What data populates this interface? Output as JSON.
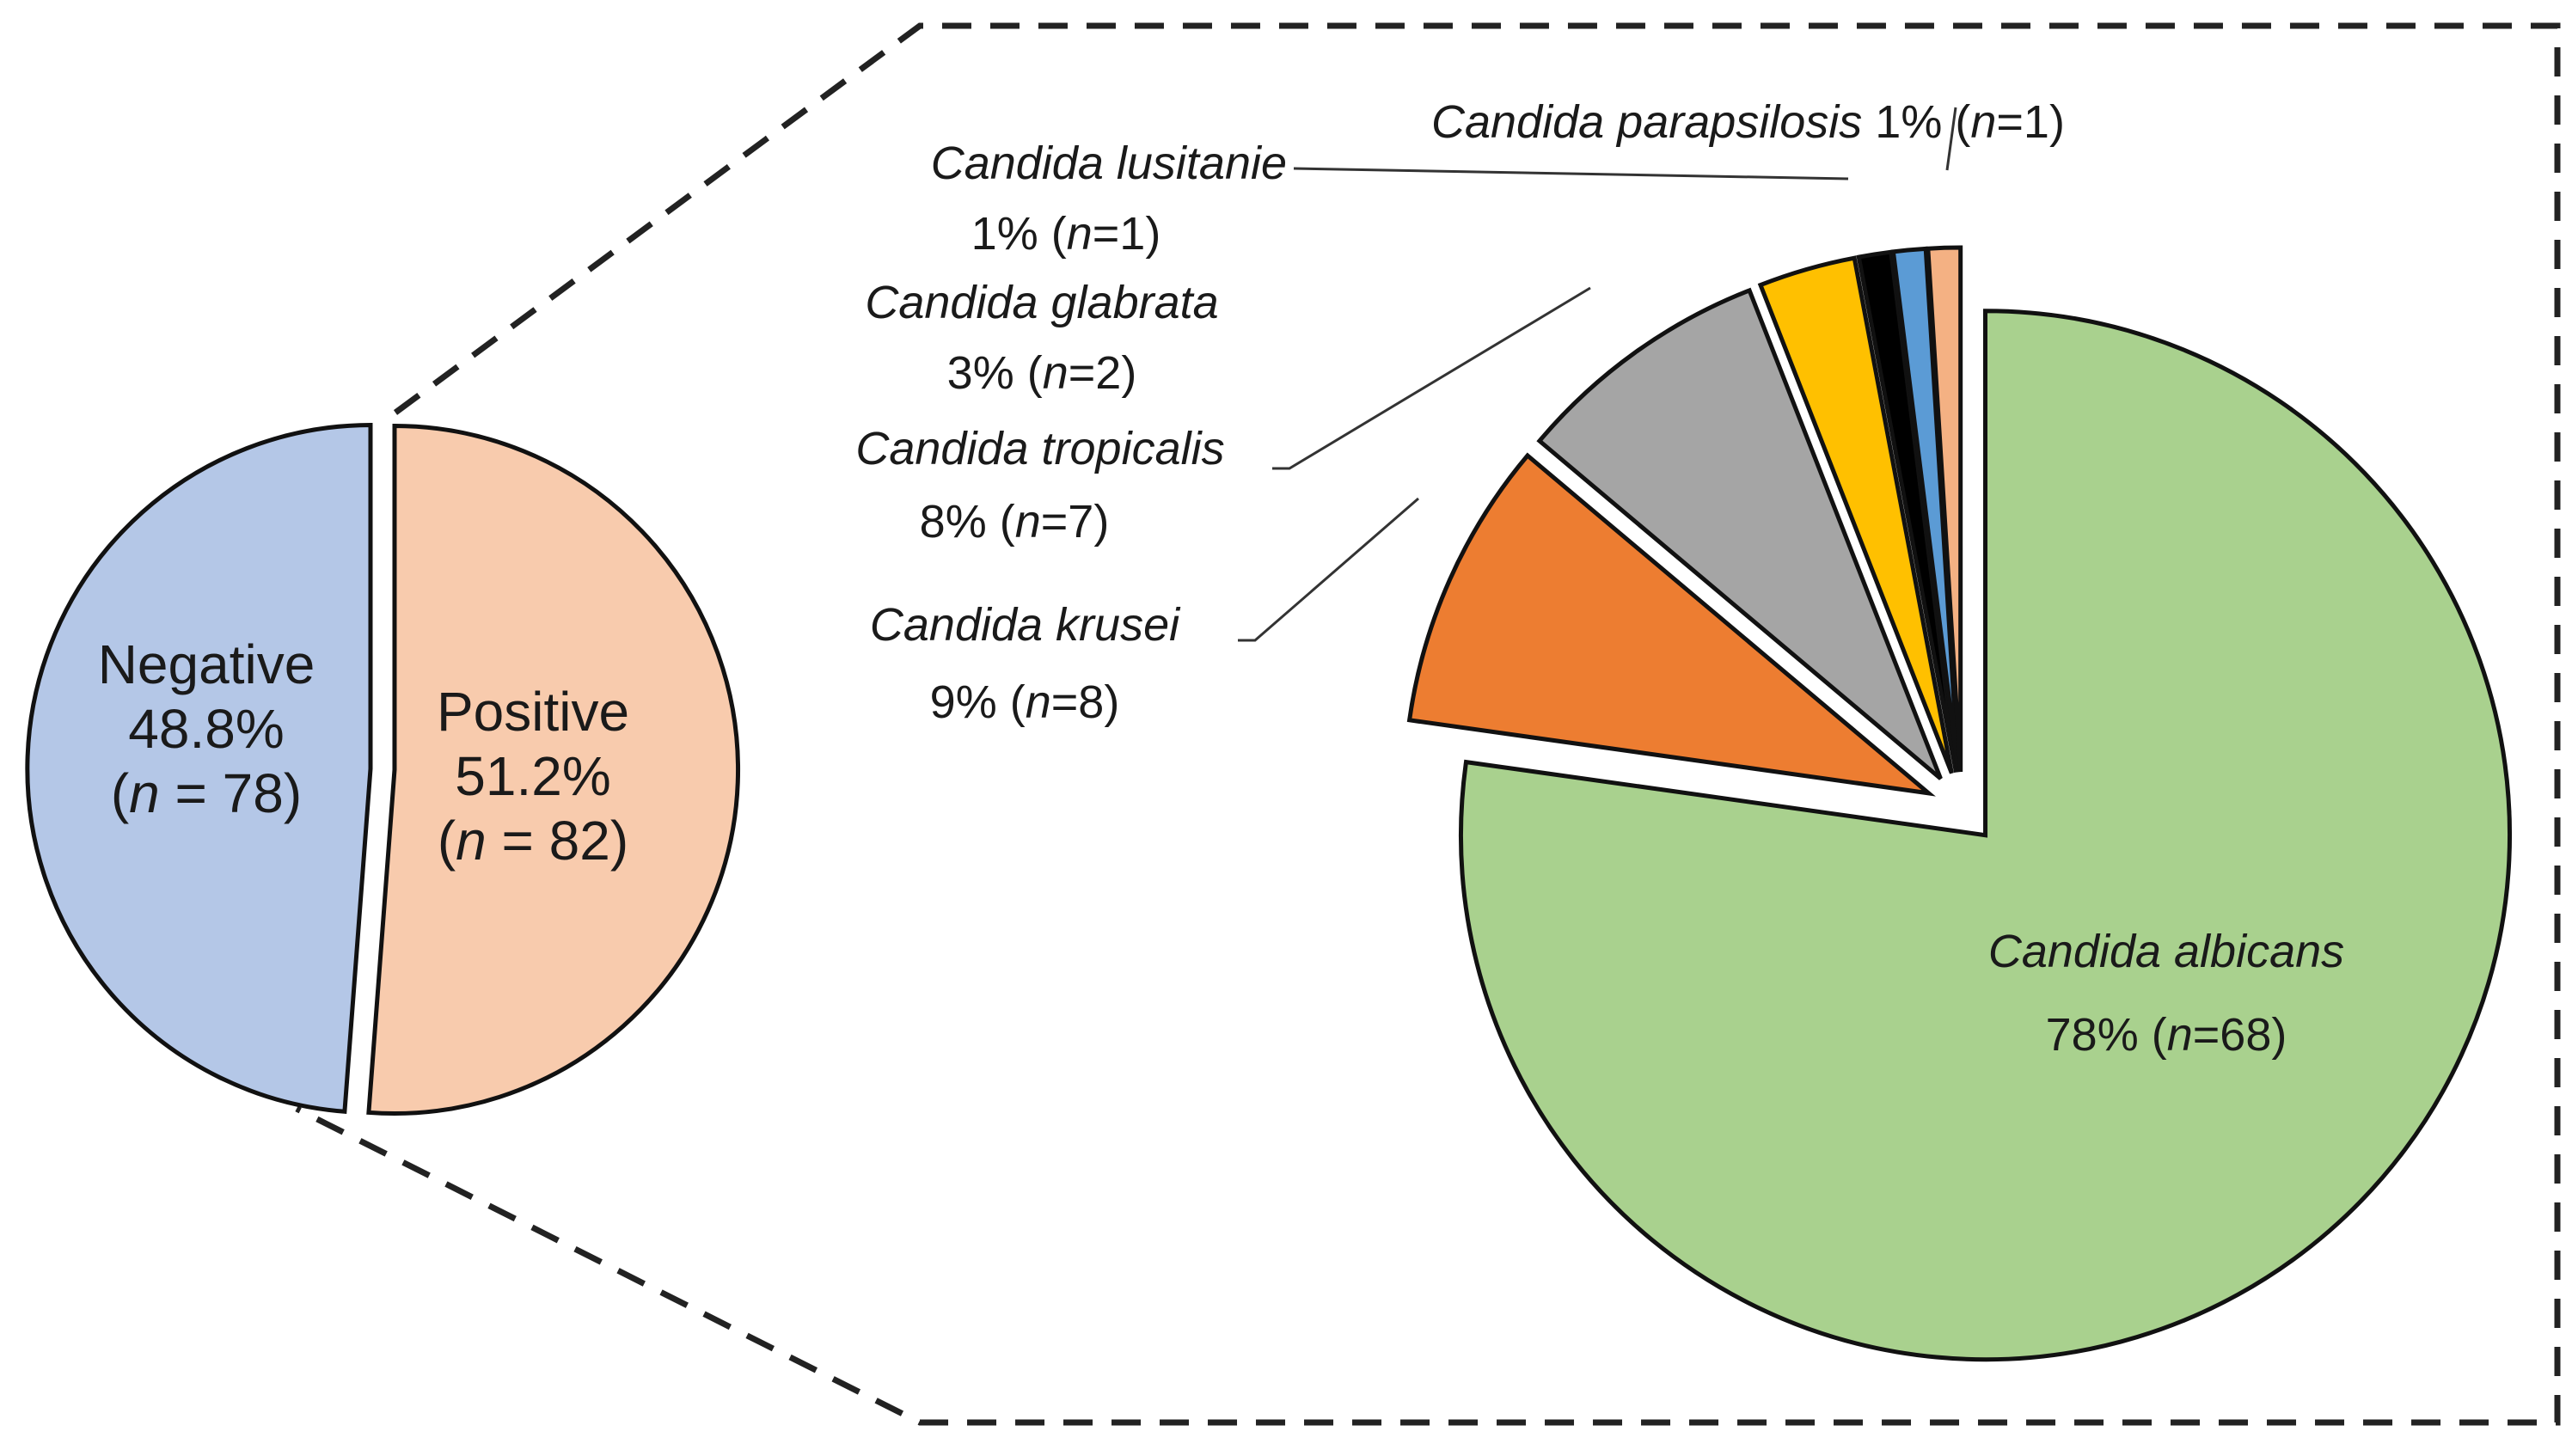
{
  "chart_data": [
    {
      "type": "pie",
      "slices": [
        {
          "label": "Negative",
          "pct_text": "48.8%",
          "count_text": " = 78)",
          "value": 48.8,
          "n": 78,
          "color": "#b4c7e7"
        },
        {
          "label": "Positive",
          "pct_text": "51.2%",
          "count_text": " = 82)",
          "value": 51.2,
          "n": 82,
          "color": "#f8cbad"
        }
      ]
    },
    {
      "type": "pie",
      "title": "",
      "slices": [
        {
          "label": "Candida albicans",
          "stat_text": "78% (",
          "count_text": "=68)",
          "value": 78,
          "n": 68,
          "color": "#a9d18e"
        },
        {
          "label": "Candida krusei",
          "stat_text": "9% (",
          "count_text": "=8)",
          "value": 9,
          "n": 8,
          "color": "#ed7d31"
        },
        {
          "label": "Candida tropicalis",
          "stat_text": "8% (",
          "count_text": "=7)",
          "value": 8,
          "n": 7,
          "color": "#a5a5a5"
        },
        {
          "label": "Candida glabrata",
          "stat_text": "3% (",
          "count_text": "=2)",
          "value": 3,
          "n": 2,
          "color": "#ffc000"
        },
        {
          "label": "Candida lusitanie",
          "stat_text": "1% (",
          "count_text": "=1)",
          "value": 1,
          "n": 1,
          "color": "#000000"
        },
        {
          "label": "Candida parapsilosis",
          "stat_text": " 1% (",
          "count_text": "=1)",
          "value": 1,
          "n": 1,
          "color": "#5b9bd5"
        },
        {
          "label": "",
          "stat_text": "",
          "count_text": "",
          "value": 1,
          "n": 1,
          "color": "#f4b183"
        }
      ]
    }
  ],
  "n_symbol": "n"
}
